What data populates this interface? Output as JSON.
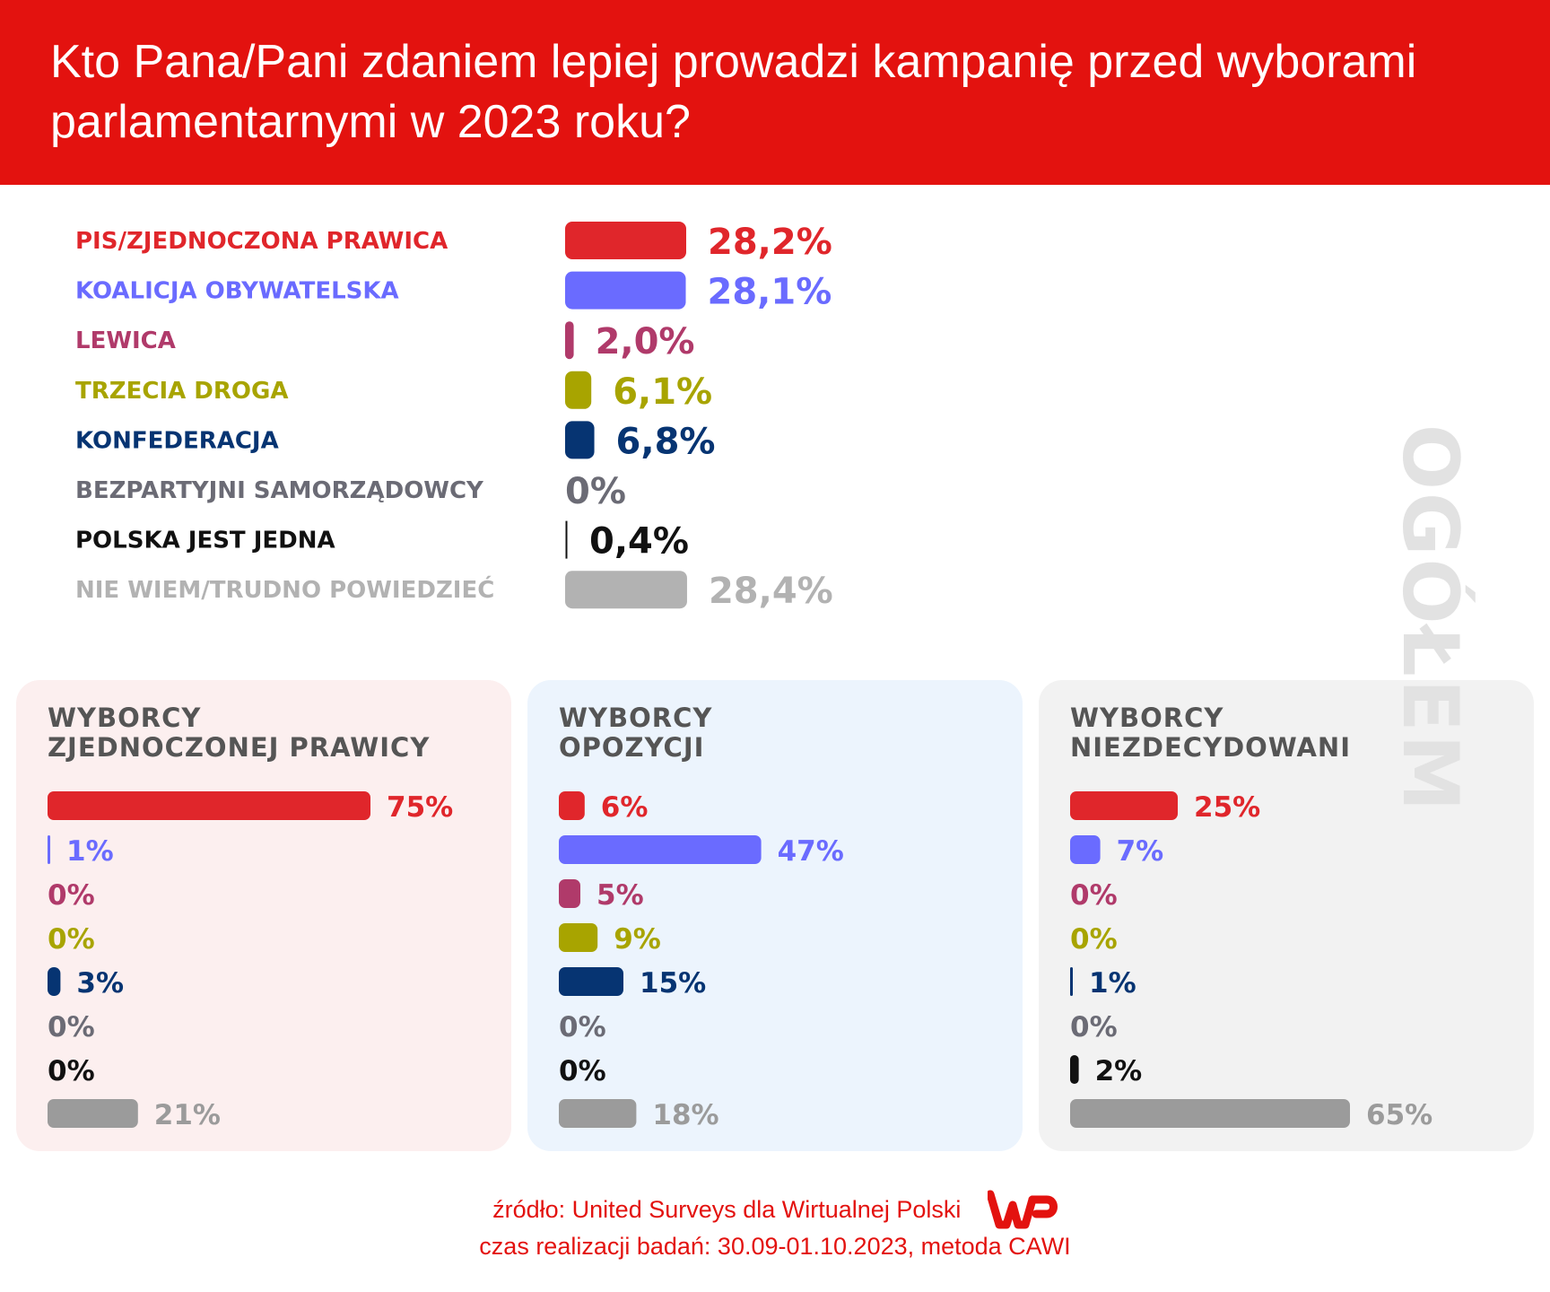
{
  "header": {
    "title": "Kto Pana/Pani zdaniem lepiej prowadzi kampanię przed wyborami parlamentarnymi w 2023 roku?"
  },
  "side_label": "OGÓŁEM",
  "colors": {
    "header_bg": "#e3120f",
    "footer_text": "#e3120f",
    "pis": "#e0262b",
    "ko": "#6a6bff",
    "lewica": "#b03a6a",
    "trzecia_droga": "#a8a400",
    "konfederacja": "#063472",
    "bezpartyjni": "#6b6b75",
    "polska_jest_jedna": "#111111",
    "nie_wiem": "#b2b2b2",
    "panel_pis_bg": "#fcefef",
    "panel_opozycja_bg": "#ecf4fd",
    "panel_niezdecydowani_bg": "#f2f2f2"
  },
  "chart_data": [
    {
      "type": "bar",
      "orientation": "horizontal",
      "categories": [
        "PIS/ZJEDNOCZONA PRAWICA",
        "KOALICJA OBYWATELSKA",
        "LEWICA",
        "TRZECIA DROGA",
        "KONFEDERACJA",
        "BEZPARTYJNI SAMORZĄDOWCY",
        "POLSKA JEST JEDNA",
        "NIE WIEM/TRUDNO POWIEDZIEĆ"
      ],
      "values": [
        28.2,
        28.1,
        2.0,
        6.1,
        6.8,
        0,
        0.4,
        28.4
      ],
      "labels": [
        "28,2%",
        "28,1%",
        "2,0%",
        "6,1%",
        "6,8%",
        "0%",
        "0,4%",
        "28,4%"
      ],
      "colors": [
        "#e0262b",
        "#6a6bff",
        "#b03a6a",
        "#a8a400",
        "#063472",
        "#6b6b75",
        "#111111",
        "#b2b2b2"
      ],
      "title": "OGÓŁEM"
    },
    {
      "type": "bar",
      "orientation": "horizontal",
      "title": "WYBORCY ZJEDNOCZONEJ PRAWICY",
      "categories": [
        "PIS/ZJEDNOCZONA PRAWICA",
        "KOALICJA OBYWATELSKA",
        "LEWICA",
        "TRZECIA DROGA",
        "KONFEDERACJA",
        "BEZPARTYJNI SAMORZĄDOWCY",
        "POLSKA JEST JEDNA",
        "NIE WIEM/TRUDNO POWIEDZIEĆ"
      ],
      "values": [
        75,
        1,
        0,
        0,
        3,
        0,
        0,
        21
      ],
      "labels": [
        "75%",
        "1%",
        "0%",
        "0%",
        "3%",
        "0%",
        "0%",
        "21%"
      ]
    },
    {
      "type": "bar",
      "orientation": "horizontal",
      "title": "WYBORCY OPOZYCJI",
      "categories": [
        "PIS/ZJEDNOCZONA PRAWICA",
        "KOALICJA OBYWATELSKA",
        "LEWICA",
        "TRZECIA DROGA",
        "KONFEDERACJA",
        "BEZPARTYJNI SAMORZĄDOWCY",
        "POLSKA JEST JEDNA",
        "NIE WIEM/TRUDNO POWIEDZIEĆ"
      ],
      "values": [
        6,
        47,
        5,
        9,
        15,
        0,
        0,
        18
      ],
      "labels": [
        "6%",
        "47%",
        "5%",
        "9%",
        "15%",
        "0%",
        "0%",
        "18%"
      ]
    },
    {
      "type": "bar",
      "orientation": "horizontal",
      "title": "WYBORCY NIEZDECYDOWANI",
      "categories": [
        "PIS/ZJEDNOCZONA PRAWICA",
        "KOALICJA OBYWATELSKA",
        "LEWICA",
        "TRZECIA DROGA",
        "KONFEDERACJA",
        "BEZPARTYJNI SAMORZĄDOWCY",
        "POLSKA JEST JEDNA",
        "NIE WIEM/TRUDNO POWIEDZIEĆ"
      ],
      "values": [
        25,
        7,
        0,
        0,
        1,
        0,
        2,
        65
      ],
      "labels": [
        "25%",
        "7%",
        "0%",
        "0%",
        "1%",
        "0%",
        "2%",
        "65%"
      ]
    }
  ],
  "footer": {
    "source": "źródło: United Surveys dla Wirtualnej Polski",
    "method": "czas realizacji badań: 30.09-01.10.2023, metoda CAWI",
    "logo": "wp-logo"
  }
}
